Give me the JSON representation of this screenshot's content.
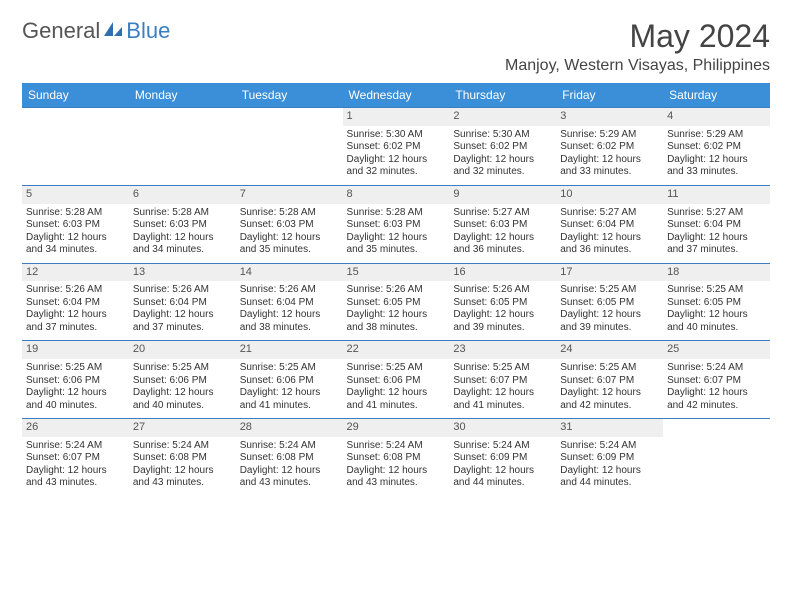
{
  "brand": {
    "part1": "General",
    "part2": "Blue"
  },
  "header": {
    "title": "May 2024",
    "location": "Manjoy, Western Visayas, Philippines"
  },
  "colors": {
    "header_bg": "#3a8fd8",
    "header_text": "#ffffff",
    "daynum_bg": "#efefef",
    "daynum_text": "#555555",
    "cell_text": "#333333",
    "rule": "#3a7fc2",
    "brand_gray": "#555555",
    "brand_blue": "#3a7fc2",
    "background": "#ffffff"
  },
  "typography": {
    "title_fontsize": 32,
    "location_fontsize": 16,
    "dayheader_fontsize": 12,
    "daynum_fontsize": 11,
    "cell_fontsize": 10
  },
  "days_of_week": [
    "Sunday",
    "Monday",
    "Tuesday",
    "Wednesday",
    "Thursday",
    "Friday",
    "Saturday"
  ],
  "layout": {
    "first_weekday_index": 3,
    "days_in_month": 31,
    "columns": 7,
    "rows": 5
  },
  "entries": {
    "1": {
      "sunrise": "5:30 AM",
      "sunset": "6:02 PM",
      "daylight": "12 hours and 32 minutes."
    },
    "2": {
      "sunrise": "5:30 AM",
      "sunset": "6:02 PM",
      "daylight": "12 hours and 32 minutes."
    },
    "3": {
      "sunrise": "5:29 AM",
      "sunset": "6:02 PM",
      "daylight": "12 hours and 33 minutes."
    },
    "4": {
      "sunrise": "5:29 AM",
      "sunset": "6:02 PM",
      "daylight": "12 hours and 33 minutes."
    },
    "5": {
      "sunrise": "5:28 AM",
      "sunset": "6:03 PM",
      "daylight": "12 hours and 34 minutes."
    },
    "6": {
      "sunrise": "5:28 AM",
      "sunset": "6:03 PM",
      "daylight": "12 hours and 34 minutes."
    },
    "7": {
      "sunrise": "5:28 AM",
      "sunset": "6:03 PM",
      "daylight": "12 hours and 35 minutes."
    },
    "8": {
      "sunrise": "5:28 AM",
      "sunset": "6:03 PM",
      "daylight": "12 hours and 35 minutes."
    },
    "9": {
      "sunrise": "5:27 AM",
      "sunset": "6:03 PM",
      "daylight": "12 hours and 36 minutes."
    },
    "10": {
      "sunrise": "5:27 AM",
      "sunset": "6:04 PM",
      "daylight": "12 hours and 36 minutes."
    },
    "11": {
      "sunrise": "5:27 AM",
      "sunset": "6:04 PM",
      "daylight": "12 hours and 37 minutes."
    },
    "12": {
      "sunrise": "5:26 AM",
      "sunset": "6:04 PM",
      "daylight": "12 hours and 37 minutes."
    },
    "13": {
      "sunrise": "5:26 AM",
      "sunset": "6:04 PM",
      "daylight": "12 hours and 37 minutes."
    },
    "14": {
      "sunrise": "5:26 AM",
      "sunset": "6:04 PM",
      "daylight": "12 hours and 38 minutes."
    },
    "15": {
      "sunrise": "5:26 AM",
      "sunset": "6:05 PM",
      "daylight": "12 hours and 38 minutes."
    },
    "16": {
      "sunrise": "5:26 AM",
      "sunset": "6:05 PM",
      "daylight": "12 hours and 39 minutes."
    },
    "17": {
      "sunrise": "5:25 AM",
      "sunset": "6:05 PM",
      "daylight": "12 hours and 39 minutes."
    },
    "18": {
      "sunrise": "5:25 AM",
      "sunset": "6:05 PM",
      "daylight": "12 hours and 40 minutes."
    },
    "19": {
      "sunrise": "5:25 AM",
      "sunset": "6:06 PM",
      "daylight": "12 hours and 40 minutes."
    },
    "20": {
      "sunrise": "5:25 AM",
      "sunset": "6:06 PM",
      "daylight": "12 hours and 40 minutes."
    },
    "21": {
      "sunrise": "5:25 AM",
      "sunset": "6:06 PM",
      "daylight": "12 hours and 41 minutes."
    },
    "22": {
      "sunrise": "5:25 AM",
      "sunset": "6:06 PM",
      "daylight": "12 hours and 41 minutes."
    },
    "23": {
      "sunrise": "5:25 AM",
      "sunset": "6:07 PM",
      "daylight": "12 hours and 41 minutes."
    },
    "24": {
      "sunrise": "5:25 AM",
      "sunset": "6:07 PM",
      "daylight": "12 hours and 42 minutes."
    },
    "25": {
      "sunrise": "5:24 AM",
      "sunset": "6:07 PM",
      "daylight": "12 hours and 42 minutes."
    },
    "26": {
      "sunrise": "5:24 AM",
      "sunset": "6:07 PM",
      "daylight": "12 hours and 43 minutes."
    },
    "27": {
      "sunrise": "5:24 AM",
      "sunset": "6:08 PM",
      "daylight": "12 hours and 43 minutes."
    },
    "28": {
      "sunrise": "5:24 AM",
      "sunset": "6:08 PM",
      "daylight": "12 hours and 43 minutes."
    },
    "29": {
      "sunrise": "5:24 AM",
      "sunset": "6:08 PM",
      "daylight": "12 hours and 43 minutes."
    },
    "30": {
      "sunrise": "5:24 AM",
      "sunset": "6:09 PM",
      "daylight": "12 hours and 44 minutes."
    },
    "31": {
      "sunrise": "5:24 AM",
      "sunset": "6:09 PM",
      "daylight": "12 hours and 44 minutes."
    }
  },
  "labels": {
    "sunrise": "Sunrise:",
    "sunset": "Sunset:",
    "daylight": "Daylight:"
  }
}
